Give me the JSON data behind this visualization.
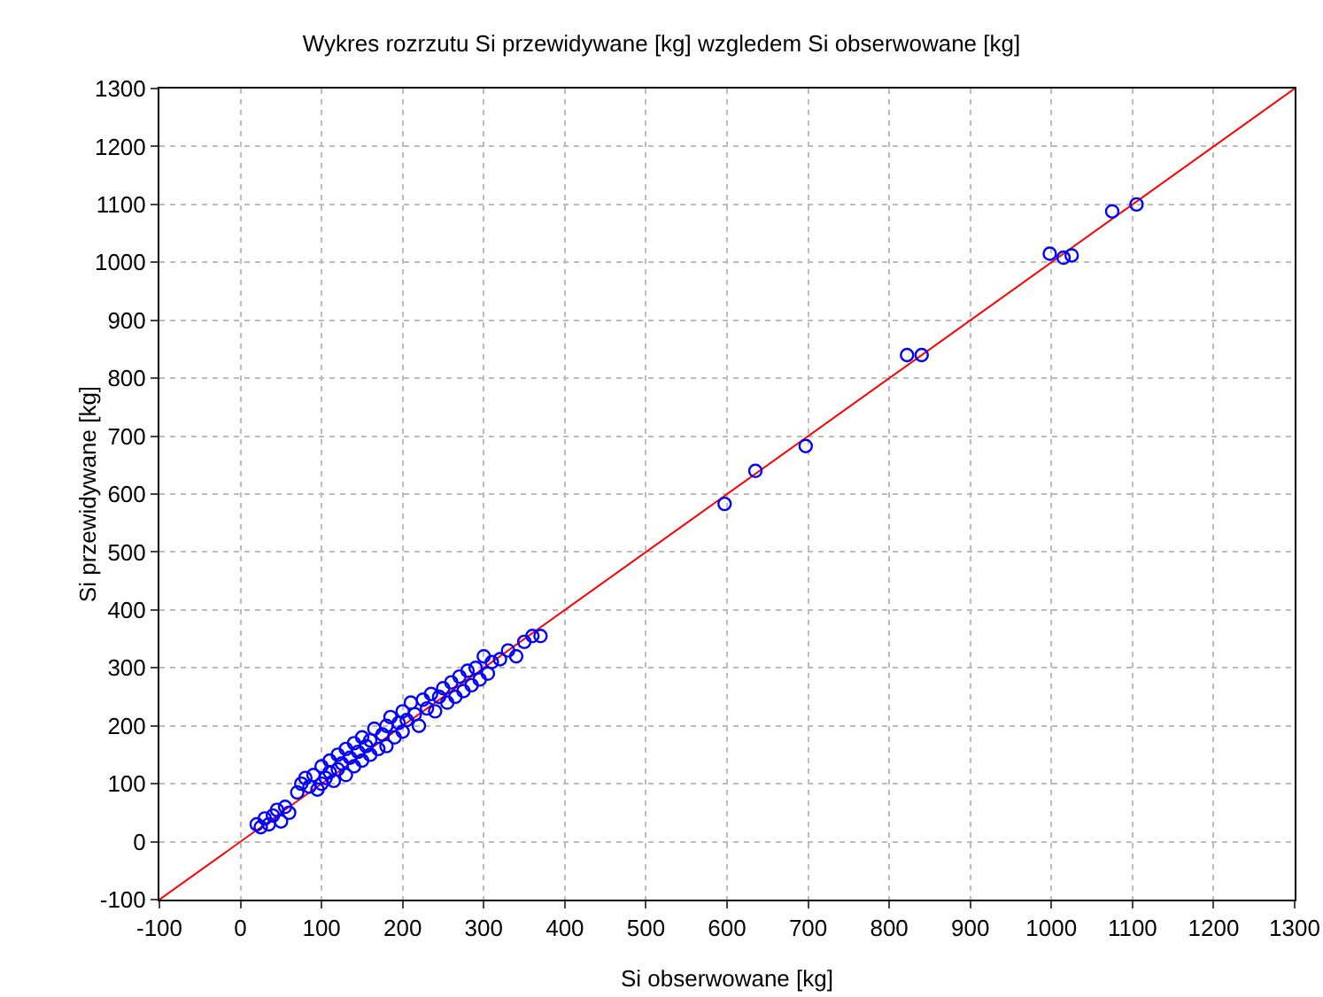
{
  "chart_data": {
    "type": "scatter",
    "title": "Wykres rozrzutu Si przewidywane [kg] wzgledem Si obserwowane [kg]",
    "xlabel": "Si obserwowane [kg]",
    "ylabel": "Si przewidywane [kg]",
    "xlim": [
      -100,
      1300
    ],
    "xticks": [
      -100,
      0,
      100,
      200,
      300,
      400,
      500,
      600,
      700,
      800,
      900,
      1000,
      1100,
      1200,
      1300
    ],
    "ylim": [
      -100,
      1300
    ],
    "yticks": [
      -100,
      0,
      100,
      200,
      300,
      400,
      500,
      600,
      700,
      800,
      900,
      1000,
      1100,
      1200,
      1300
    ],
    "grid": true,
    "marker": "circle",
    "series": [
      {
        "color": "#0000ff",
        "x": [
          20,
          25,
          30,
          35,
          40,
          45,
          50,
          55,
          60,
          70,
          75,
          80,
          85,
          90,
          95,
          100,
          100,
          105,
          110,
          110,
          115,
          120,
          120,
          125,
          130,
          130,
          135,
          140,
          140,
          145,
          150,
          150,
          155,
          160,
          160,
          165,
          170,
          175,
          180,
          180,
          185,
          190,
          195,
          200,
          200,
          205,
          210,
          215,
          220,
          225,
          230,
          235,
          240,
          245,
          250,
          255,
          260,
          265,
          270,
          275,
          280,
          285,
          290,
          295,
          300,
          305,
          310,
          320,
          330,
          340,
          350,
          360,
          370,
          597,
          635,
          697,
          822,
          840,
          998,
          1015,
          1025,
          1075,
          1105
        ],
        "values": [
          30,
          25,
          40,
          30,
          45,
          55,
          35,
          60,
          50,
          85,
          100,
          110,
          95,
          115,
          90,
          100,
          130,
          110,
          140,
          120,
          105,
          150,
          125,
          135,
          160,
          115,
          145,
          170,
          130,
          155,
          180,
          140,
          165,
          175,
          150,
          195,
          160,
          185,
          200,
          165,
          215,
          180,
          205,
          225,
          190,
          210,
          240,
          220,
          200,
          245,
          230,
          255,
          225,
          250,
          265,
          240,
          275,
          250,
          285,
          260,
          295,
          270,
          300,
          280,
          320,
          290,
          310,
          315,
          330,
          320,
          345,
          355,
          355,
          583,
          640,
          683,
          840,
          840,
          1015,
          1008,
          1012,
          1088,
          1100
        ]
      },
      {
        "type": "line",
        "color": "#ff0000",
        "marker": "none",
        "x": [
          -100,
          1300
        ],
        "values": [
          -100,
          1300
        ]
      }
    ]
  }
}
